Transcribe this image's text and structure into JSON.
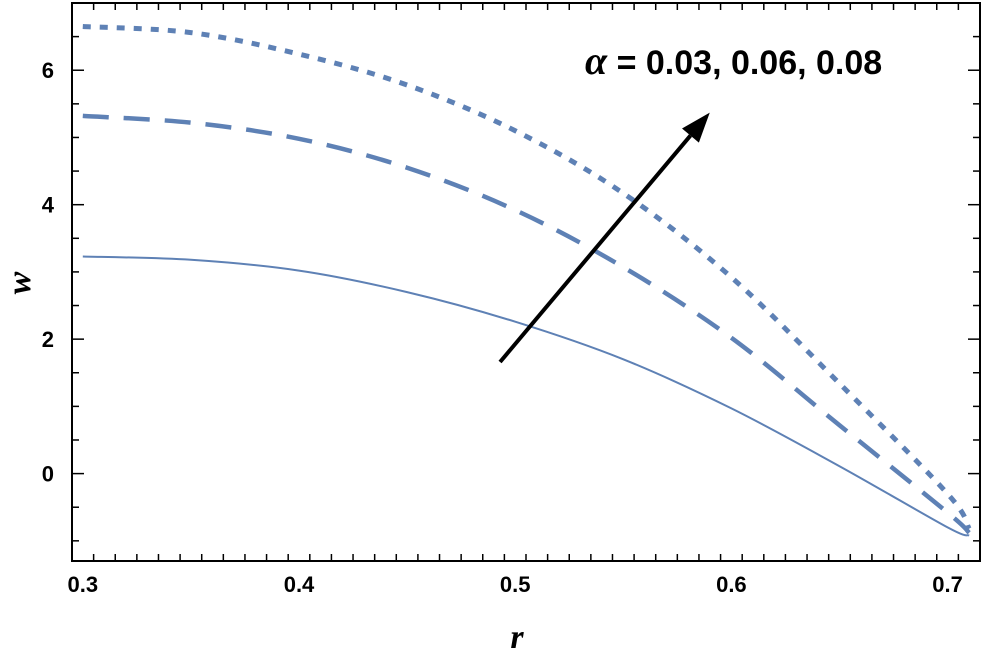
{
  "chart_data": {
    "type": "line",
    "title": "",
    "xlabel": "r",
    "ylabel": "w",
    "xlim": [
      0.295,
      0.715
    ],
    "ylim": [
      -1.3,
      7.0
    ],
    "x_ticks": [
      0.3,
      0.4,
      0.5,
      0.6,
      0.7
    ],
    "x_tick_labels": [
      "0.3",
      "0.4",
      "0.5",
      "0.6",
      "0.7"
    ],
    "y_ticks": [
      0,
      2,
      4,
      6
    ],
    "y_tick_labels": [
      "0",
      "2",
      "4",
      "6"
    ],
    "grid": false,
    "legend": "none",
    "color": "#5e81b5",
    "annotation": {
      "symbol": "α",
      "text": " = 0.03, 0.06, 0.08",
      "arrow": {
        "from": [
          0.493,
          1.66
        ],
        "to": [
          0.59,
          5.37
        ]
      }
    },
    "series": [
      {
        "style": "solid",
        "x": [
          0.3,
          0.35,
          0.4,
          0.45,
          0.5,
          0.55,
          0.6,
          0.65,
          0.7,
          0.71
        ],
        "y": [
          3.23,
          3.18,
          3.02,
          2.7,
          2.26,
          1.7,
          0.97,
          0.11,
          -0.8,
          -0.92
        ]
      },
      {
        "style": "dashed",
        "x": [
          0.3,
          0.35,
          0.4,
          0.45,
          0.5,
          0.55,
          0.6,
          0.65,
          0.7,
          0.71
        ],
        "y": [
          5.32,
          5.22,
          4.98,
          4.55,
          3.92,
          3.07,
          2.02,
          0.72,
          -0.58,
          -0.88
        ]
      },
      {
        "style": "dotted",
        "x": [
          0.3,
          0.35,
          0.4,
          0.45,
          0.5,
          0.55,
          0.6,
          0.65,
          0.7,
          0.71
        ],
        "y": [
          6.65,
          6.56,
          6.24,
          5.78,
          5.1,
          4.17,
          2.92,
          1.34,
          -0.3,
          -0.82
        ]
      }
    ]
  }
}
